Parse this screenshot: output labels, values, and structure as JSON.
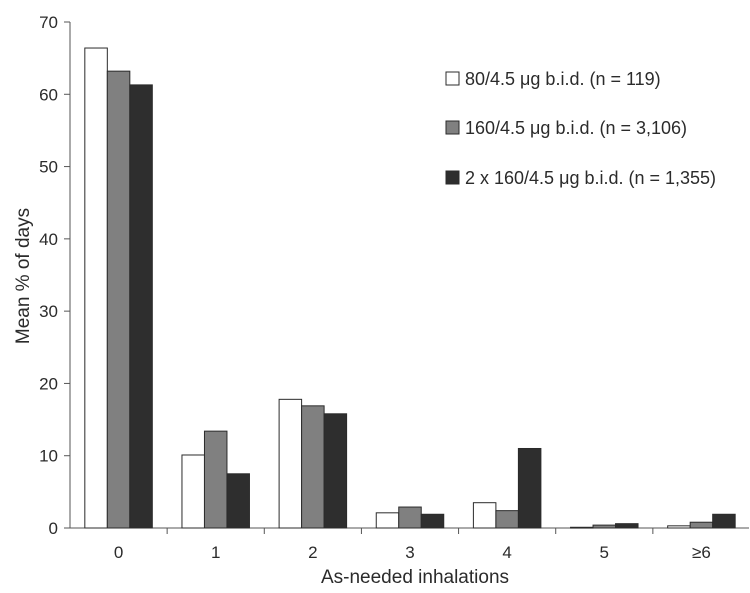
{
  "chart_data": {
    "type": "bar",
    "xlabel": "As-needed inhalations",
    "ylabel": "Mean % of days",
    "categories": [
      "0",
      "1",
      "2",
      "3",
      "4",
      "5",
      "≥6"
    ],
    "ylim": [
      0,
      70
    ],
    "yticks": [
      0,
      10,
      20,
      30,
      40,
      50,
      60,
      70
    ],
    "grid": false,
    "legend_position": "top-right",
    "series": [
      {
        "name": "80/4.5  μg b.i.d. (n = 119)",
        "color": "#ffffff",
        "values": [
          66.4,
          10.1,
          17.8,
          2.1,
          3.5,
          0.1,
          0.3
        ]
      },
      {
        "name": "160/4.5 μg b.i.d. (n = 3,106)",
        "color": "#808080",
        "values": [
          63.2,
          13.4,
          16.9,
          2.9,
          2.4,
          0.4,
          0.8
        ]
      },
      {
        "name": "2 x 160/4.5 μg b.i.d. (n = 1,355)",
        "color": "#2e2e2e",
        "values": [
          61.3,
          7.5,
          15.8,
          1.9,
          11.0,
          0.6,
          1.9
        ]
      }
    ]
  }
}
